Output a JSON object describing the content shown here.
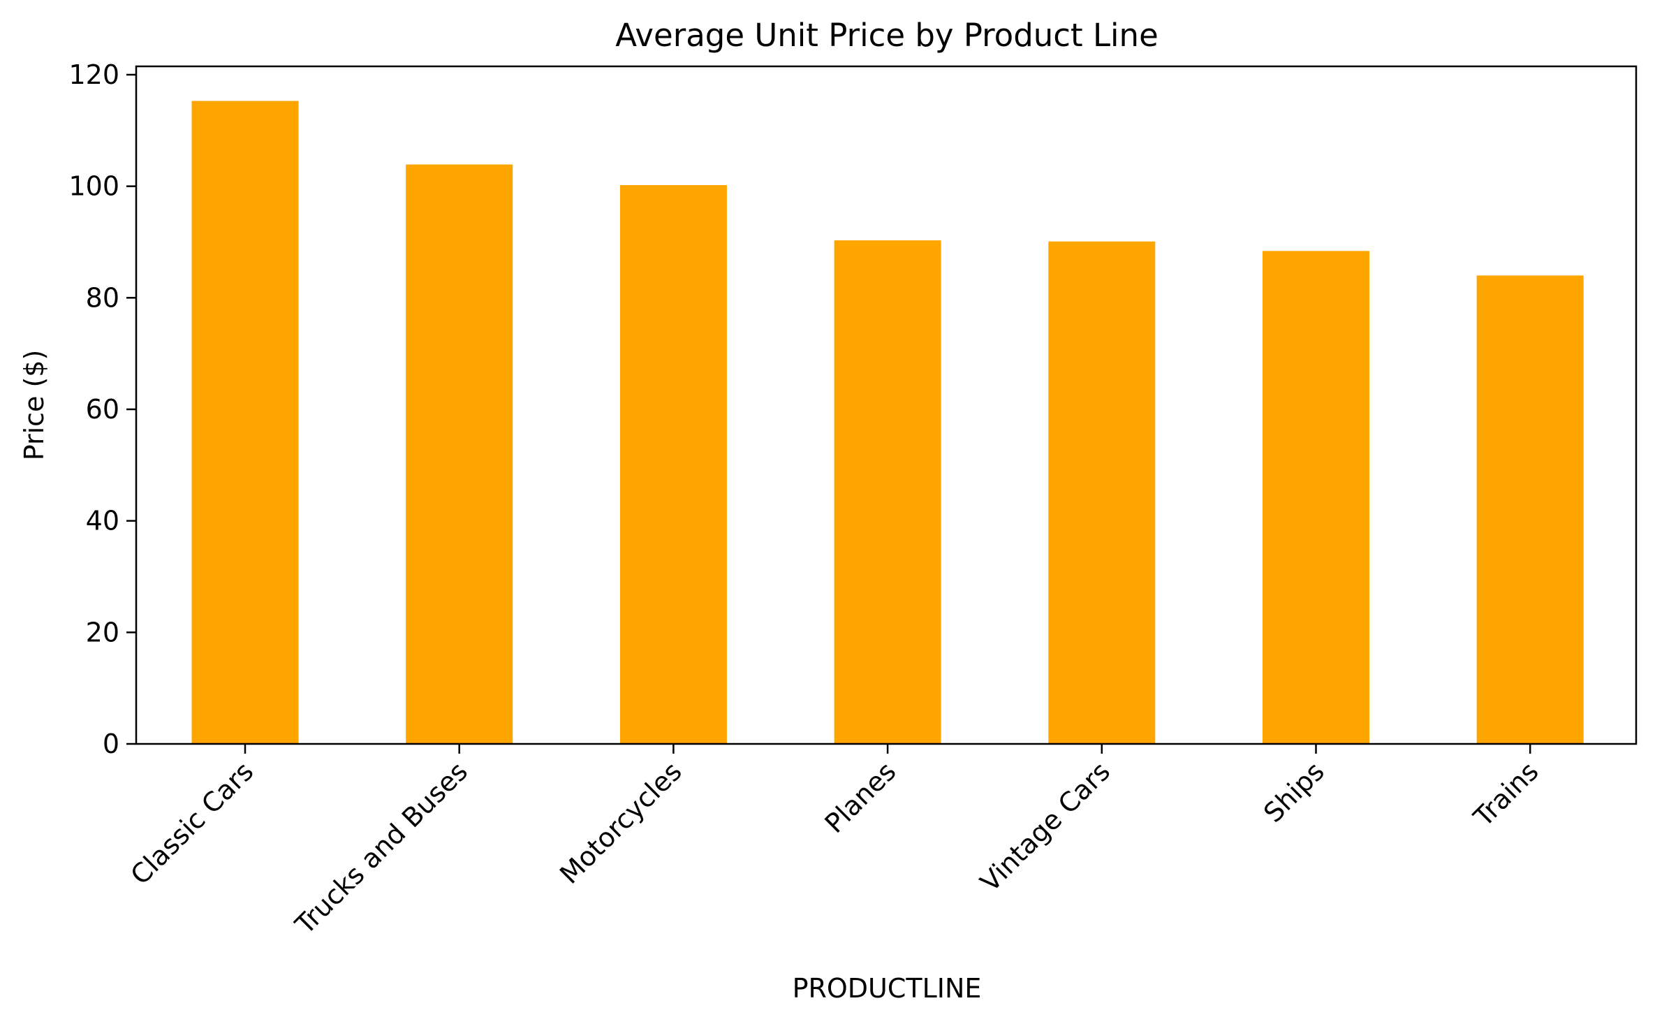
{
  "chart_data": {
    "type": "bar",
    "title": "Average Unit Price by Product Line",
    "xlabel": "PRODUCTLINE",
    "ylabel": "Price ($)",
    "categories": [
      "Classic Cars",
      "Trucks and Buses",
      "Motorcycles",
      "Planes",
      "Vintage Cars",
      "Ships",
      "Trains"
    ],
    "values": [
      115.3,
      103.9,
      100.2,
      90.3,
      90.1,
      88.4,
      84.0
    ],
    "ylim": [
      0,
      121.5
    ],
    "yticks": [
      "0",
      "20",
      "40",
      "60",
      "80",
      "100",
      "120"
    ],
    "grid": false,
    "legend": "none",
    "bar_color": "#ffa500"
  }
}
